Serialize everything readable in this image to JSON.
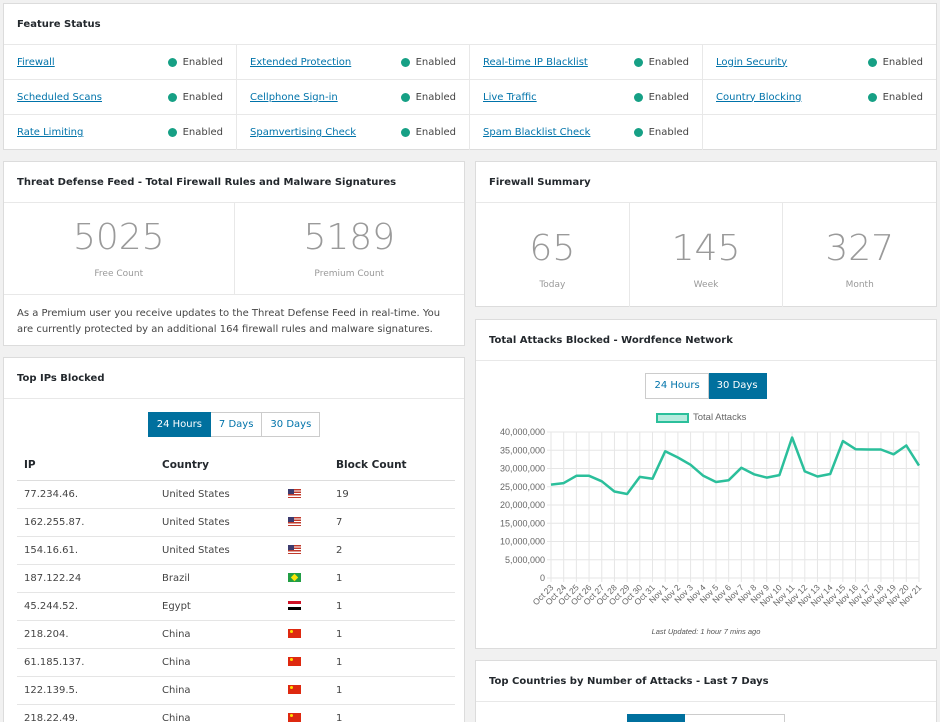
{
  "feature_status": {
    "title": "Feature Status",
    "items": [
      {
        "name": "Firewall",
        "status": "Enabled"
      },
      {
        "name": "Extended Protection",
        "status": "Enabled"
      },
      {
        "name": "Real-time IP Blacklist",
        "status": "Enabled"
      },
      {
        "name": "Login Security",
        "status": "Enabled"
      },
      {
        "name": "Scheduled Scans",
        "status": "Enabled"
      },
      {
        "name": "Cellphone Sign-in",
        "status": "Enabled"
      },
      {
        "name": "Live Traffic",
        "status": "Enabled"
      },
      {
        "name": "Country Blocking",
        "status": "Enabled"
      },
      {
        "name": "Rate Limiting",
        "status": "Enabled"
      },
      {
        "name": "Spamvertising Check",
        "status": "Enabled"
      },
      {
        "name": "Spam Blacklist Check",
        "status": "Enabled"
      }
    ],
    "status_color": "#16a085"
  },
  "threat_feed": {
    "title": "Threat Defense Feed - Total Firewall Rules and Malware Signatures",
    "free_count": "5025",
    "free_label": "Free Count",
    "premium_count": "5189",
    "premium_label": "Premium Count",
    "message": "As a Premium user you receive updates to the Threat Defense Feed in real-time. You are currently protected by an additional 164 firewall rules and malware signatures."
  },
  "firewall_summary": {
    "title": "Firewall Summary",
    "today": "65",
    "today_label": "Today",
    "week": "145",
    "week_label": "Week",
    "month": "327",
    "month_label": "Month"
  },
  "top_ips": {
    "title": "Top IPs Blocked",
    "tabs": [
      "24 Hours",
      "7 Days",
      "30 Days"
    ],
    "active_tab": "24 Hours",
    "columns": [
      "IP",
      "Country",
      "Block Count"
    ],
    "rows": [
      {
        "ip": "77.234.46.",
        "country": "United States",
        "flag": "us",
        "count": "19"
      },
      {
        "ip": "162.255.87.",
        "country": "United States",
        "flag": "us",
        "count": "7"
      },
      {
        "ip": "154.16.61.",
        "country": "United States",
        "flag": "us",
        "count": "2"
      },
      {
        "ip": "187.122.24",
        "country": "Brazil",
        "flag": "br",
        "count": "1"
      },
      {
        "ip": "45.244.52.",
        "country": "Egypt",
        "flag": "eg",
        "count": "1"
      },
      {
        "ip": "218.204.",
        "country": "China",
        "flag": "cn",
        "count": "1"
      },
      {
        "ip": "61.185.137.",
        "country": "China",
        "flag": "cn",
        "count": "1"
      },
      {
        "ip": "122.139.5.",
        "country": "China",
        "flag": "cn",
        "count": "1"
      },
      {
        "ip": "218.22.49.",
        "country": "China",
        "flag": "cn",
        "count": "1"
      }
    ]
  },
  "total_attacks": {
    "title": "Total Attacks Blocked - Wordfence Network",
    "tabs": [
      "24 Hours",
      "30 Days"
    ],
    "active_tab": "30 Days",
    "last_updated": "Last Updated: 1 hour 7 mins ago"
  },
  "chart_data": {
    "type": "line",
    "series": [
      {
        "name": "Total Attacks",
        "values": [
          25600000,
          26000000,
          28000000,
          28000000,
          26500000,
          23700000,
          23000000,
          27700000,
          27200000,
          34700000,
          33000000,
          31000000,
          28000000,
          26300000,
          26800000,
          30200000,
          28400000,
          27500000,
          28200000,
          38500000,
          29200000,
          27800000,
          28500000,
          37500000,
          35300000,
          35200000,
          35200000,
          33900000,
          36300000,
          30800000
        ]
      }
    ],
    "x": [
      "Oct 23",
      "Oct 24",
      "Oct 25",
      "Oct 26",
      "Oct 27",
      "Oct 28",
      "Oct 29",
      "Oct 30",
      "Oct 31",
      "Nov 1",
      "Nov 2",
      "Nov 3",
      "Nov 4",
      "Nov 5",
      "Nov 6",
      "Nov 7",
      "Nov 8",
      "Nov 9",
      "Nov 10",
      "Nov 11",
      "Nov 12",
      "Nov 13",
      "Nov 14",
      "Nov 15",
      "Nov 16",
      "Nov 17",
      "Nov 18",
      "Nov 19",
      "Nov 20",
      "Nov 21"
    ],
    "y_ticks": [
      "0",
      "5,000,000",
      "10,000,000",
      "15,000,000",
      "20,000,000",
      "25,000,000",
      "30,000,000",
      "35,000,000",
      "40,000,000"
    ],
    "ylim": [
      0,
      40000000
    ],
    "grid": true,
    "legend": "top",
    "line_color": "#2bbf9b",
    "fill_color": "#b7ebde"
  },
  "top_countries": {
    "title": "Top Countries by Number of Attacks - Last 7 Days"
  }
}
